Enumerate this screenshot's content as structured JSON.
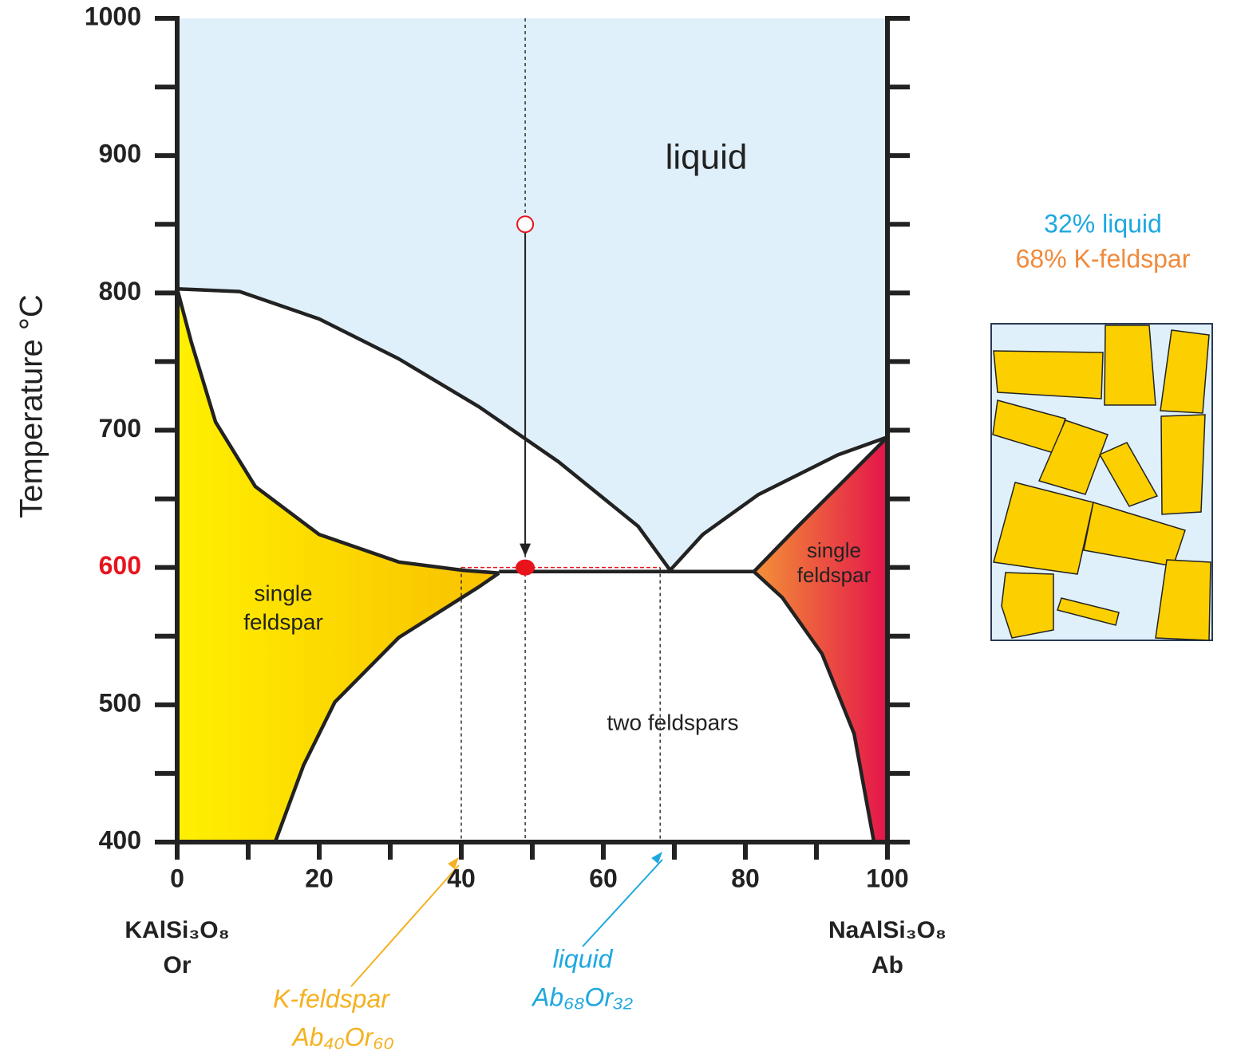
{
  "chart_data": {
    "type": "phase",
    "ylabel": "Temperature °C",
    "xlim": [
      0,
      100
    ],
    "ylim": [
      400,
      1000
    ],
    "xticks": [
      0,
      20,
      40,
      60,
      80,
      100
    ],
    "yticks": [
      400,
      500,
      600,
      700,
      800,
      900,
      1000
    ],
    "x_end_labels": {
      "left": [
        "KAlSi₃O₈",
        "Or"
      ],
      "right": [
        "NaAlSi₃O₈",
        "Ab"
      ]
    },
    "curves": {
      "liquidus_left": {
        "x": [
          0,
          8.8,
          20,
          31.2,
          42.5,
          53.7,
          64.9,
          69.4
        ],
        "y": [
          803,
          801,
          781,
          752,
          717,
          677,
          630,
          598
        ]
      },
      "liquidus_right": {
        "x": [
          69.4,
          74,
          81.8,
          93,
          100
        ],
        "y": [
          598,
          624,
          653,
          682,
          695
        ]
      },
      "solidus_left": {
        "x": [
          0,
          2,
          5.4,
          11,
          20,
          31.2,
          40.2,
          45.3
        ],
        "y": [
          803,
          764,
          706,
          659,
          624,
          604,
          598,
          596
        ]
      },
      "eutectic": {
        "x": [
          45.3,
          81.2
        ],
        "y": [
          597,
          597
        ]
      },
      "solidus_right": {
        "x": [
          81.2,
          87.4,
          94.2,
          100
        ],
        "y": [
          597,
          630,
          665,
          695
        ]
      },
      "solvus_left": {
        "x": [
          45.3,
          42.5,
          31.2,
          22.2,
          17.8,
          13.8
        ],
        "y": [
          596,
          586,
          549,
          502,
          456,
          400
        ]
      },
      "solvus_right": {
        "x": [
          81.2,
          85.2,
          90.8,
          95.3,
          98.1
        ],
        "y": [
          597,
          578,
          537,
          479,
          400
        ]
      }
    },
    "colors": {
      "liquid": "#dff0fa",
      "left_gradient": [
        "#fff000",
        "#f9c000"
      ],
      "right_gradient": [
        "#f39237",
        "#e4154a"
      ],
      "crystal": "#fccf00"
    },
    "region_labels": {
      "liquid": "liquid",
      "single_left": [
        "single",
        "feldspar"
      ],
      "single_right": [
        "single",
        "feldspar"
      ],
      "two": "two feldspars"
    },
    "start_point": {
      "x": 49,
      "y": 850
    },
    "end_point": {
      "x": 49,
      "y": 600
    },
    "highlight_color": "#e8141c",
    "annotations": [
      {
        "lines": [
          "K-feldspar",
          "Ab₄₀Or₆₀"
        ],
        "x": 40,
        "color": "#f5b11f"
      },
      {
        "lines": [
          "liquid",
          "Ab₆₈Or₃₂"
        ],
        "x": 68,
        "color": "#1ea8e0"
      }
    ],
    "proportions": [
      {
        "text": "32% liquid",
        "color": "#1ea8e0"
      },
      {
        "text": "68% K-feldspar",
        "color": "#f08a3c"
      }
    ]
  }
}
